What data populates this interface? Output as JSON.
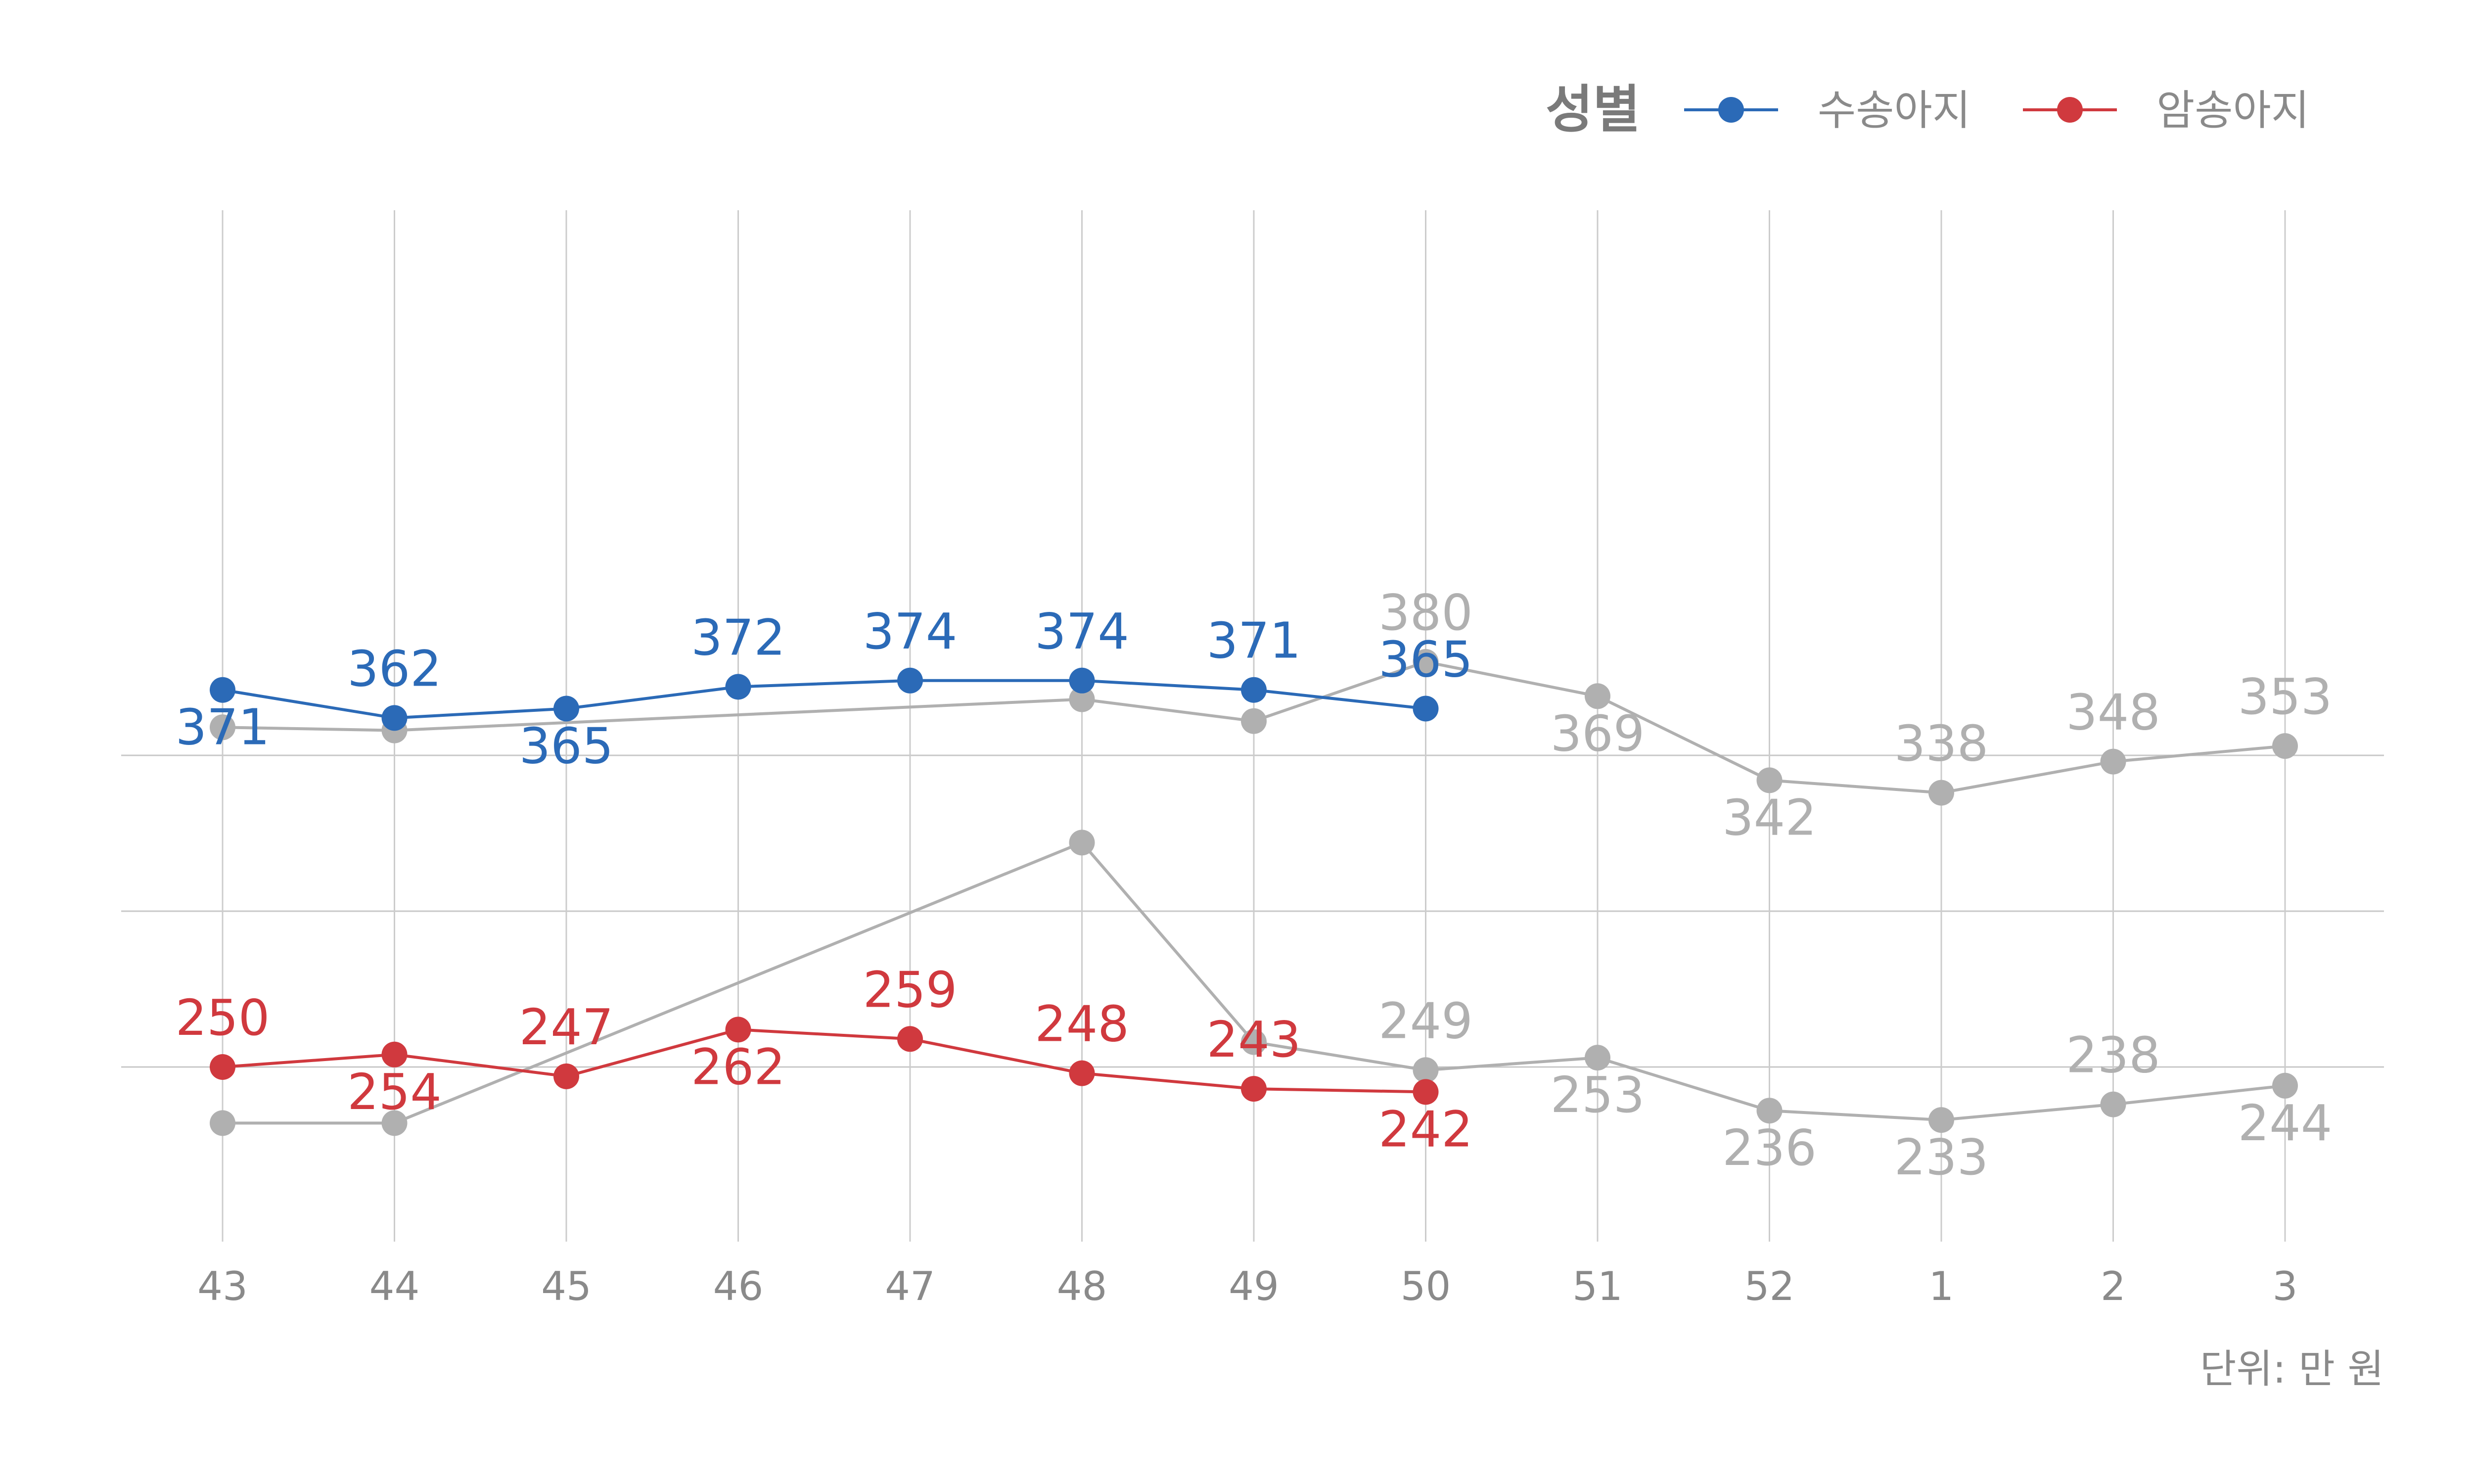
{
  "chart_data": {
    "type": "line",
    "x": [
      "43",
      "44",
      "45",
      "46",
      "47",
      "48",
      "49",
      "50",
      "51",
      "52",
      "1",
      "2",
      "3"
    ],
    "legend": {
      "title": "성별",
      "position": "top-right"
    },
    "caption": "단위: 만 원",
    "grid": true,
    "ylim": [
      200,
      400
    ],
    "series": [
      {
        "name": "수송아지",
        "color": "#2b6ab7",
        "values": [
          371,
          362,
          365,
          372,
          374,
          374,
          371,
          365,
          null,
          null,
          null,
          null,
          null
        ]
      },
      {
        "name": "암송아지",
        "color": "#d0393e",
        "values": [
          250,
          254,
          247,
          262,
          259,
          248,
          243,
          242,
          null,
          null,
          null,
          null,
          null
        ]
      },
      {
        "name": "",
        "color": "#b0b0b0",
        "values": [
          359,
          358,
          null,
          null,
          null,
          368,
          361,
          380,
          369,
          342,
          338,
          348,
          353
        ]
      },
      {
        "name": "",
        "color": "#b0b0b0",
        "values": [
          232,
          232,
          null,
          null,
          null,
          322,
          258,
          249,
          253,
          236,
          233,
          238,
          244
        ]
      }
    ],
    "data_labels": [
      {
        "series": 0,
        "point": 0,
        "text": "371"
      },
      {
        "series": 0,
        "point": 1,
        "text": "362"
      },
      {
        "series": 0,
        "point": 2,
        "text": "365"
      },
      {
        "series": 0,
        "point": 3,
        "text": "372"
      },
      {
        "series": 0,
        "point": 4,
        "text": "374"
      },
      {
        "series": 0,
        "point": 5,
        "text": "374"
      },
      {
        "series": 0,
        "point": 6,
        "text": "371"
      },
      {
        "series": 0,
        "point": 7,
        "text": "365"
      },
      {
        "series": 1,
        "point": 0,
        "text": "250"
      },
      {
        "series": 1,
        "point": 1,
        "text": "254"
      },
      {
        "series": 1,
        "point": 2,
        "text": "247"
      },
      {
        "series": 1,
        "point": 3,
        "text": "262"
      },
      {
        "series": 1,
        "point": 4,
        "text": "259"
      },
      {
        "series": 1,
        "point": 5,
        "text": "248"
      },
      {
        "series": 1,
        "point": 6,
        "text": "243"
      },
      {
        "series": 1,
        "point": 7,
        "text": "242"
      },
      {
        "series": 2,
        "point": 7,
        "text": "380"
      },
      {
        "series": 2,
        "point": 8,
        "text": "369"
      },
      {
        "series": 2,
        "point": 9,
        "text": "342"
      },
      {
        "series": 2,
        "point": 10,
        "text": "338"
      },
      {
        "series": 2,
        "point": 11,
        "text": "348"
      },
      {
        "series": 2,
        "point": 12,
        "text": "353"
      },
      {
        "series": 3,
        "point": 7,
        "text": "249"
      },
      {
        "series": 3,
        "point": 8,
        "text": "253"
      },
      {
        "series": 3,
        "point": 9,
        "text": "236"
      },
      {
        "series": 3,
        "point": 10,
        "text": "233"
      },
      {
        "series": 3,
        "point": 11,
        "text": "238"
      },
      {
        "series": 3,
        "point": 12,
        "text": "244"
      }
    ]
  }
}
